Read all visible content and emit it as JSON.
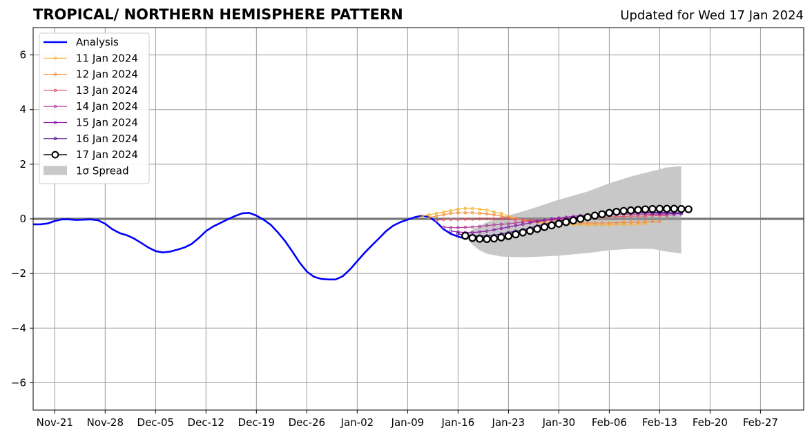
{
  "chart_data": {
    "type": "line",
    "title": "TROPICAL/ NORTHERN HEMISPHERE PATTERN",
    "subtitle": "Updated for Wed 17 Jan 2024",
    "xlim": [
      "2023-11-18",
      "2024-03-04"
    ],
    "ylim": [
      -7,
      7
    ],
    "y_ticks": [
      -6,
      -4,
      -2,
      0,
      2,
      4,
      6
    ],
    "y_tick_labels": [
      "−6",
      "−4",
      "−2",
      "0",
      "2",
      "4",
      "6"
    ],
    "x_ticks": [
      "2023-11-21",
      "2023-11-28",
      "2023-12-05",
      "2023-12-12",
      "2023-12-19",
      "2023-12-26",
      "2024-01-02",
      "2024-01-09",
      "2024-01-16",
      "2024-01-23",
      "2024-01-30",
      "2024-02-06",
      "2024-02-13",
      "2024-02-20",
      "2024-02-27"
    ],
    "x_tick_labels": [
      "Nov-21",
      "Nov-28",
      "Dec-05",
      "Dec-12",
      "Dec-19",
      "Dec-26",
      "Jan-02",
      "Jan-09",
      "Jan-16",
      "Jan-23",
      "Jan-30",
      "Feb-06",
      "Feb-13",
      "Feb-20",
      "Feb-27"
    ],
    "grid": true,
    "legend_position": "top-left",
    "zero_line": true,
    "analysis": {
      "name": "Analysis",
      "color": "#0000ff",
      "x": [
        "2023-11-18",
        "2023-11-19",
        "2023-11-20",
        "2023-11-21",
        "2023-11-22",
        "2023-11-23",
        "2023-11-24",
        "2023-11-25",
        "2023-11-26",
        "2023-11-27",
        "2023-11-28",
        "2023-11-29",
        "2023-11-30",
        "2023-12-01",
        "2023-12-02",
        "2023-12-03",
        "2023-12-04",
        "2023-12-05",
        "2023-12-06",
        "2023-12-07",
        "2023-12-08",
        "2023-12-09",
        "2023-12-10",
        "2023-12-11",
        "2023-12-12",
        "2023-12-13",
        "2023-12-14",
        "2023-12-15",
        "2023-12-16",
        "2023-12-17",
        "2023-12-18",
        "2023-12-19",
        "2023-12-20",
        "2023-12-21",
        "2023-12-22",
        "2023-12-23",
        "2023-12-24",
        "2023-12-25",
        "2023-12-26",
        "2023-12-27",
        "2023-12-28",
        "2023-12-29",
        "2023-12-30",
        "2023-12-31",
        "2024-01-01",
        "2024-01-02",
        "2024-01-03",
        "2024-01-04",
        "2024-01-05",
        "2024-01-06",
        "2024-01-07",
        "2024-01-08",
        "2024-01-09",
        "2024-01-10",
        "2024-01-11",
        "2024-01-12",
        "2024-01-13",
        "2024-01-14",
        "2024-01-15",
        "2024-01-16",
        "2024-01-17"
      ],
      "values": [
        -0.2,
        -0.2,
        -0.17,
        -0.08,
        -0.02,
        -0.02,
        -0.04,
        -0.03,
        -0.02,
        -0.05,
        -0.18,
        -0.38,
        -0.52,
        -0.6,
        -0.72,
        -0.88,
        -1.05,
        -1.18,
        -1.23,
        -1.2,
        -1.13,
        -1.05,
        -0.92,
        -0.7,
        -0.45,
        -0.28,
        -0.15,
        -0.02,
        0.1,
        0.2,
        0.22,
        0.12,
        -0.03,
        -0.22,
        -0.5,
        -0.82,
        -1.2,
        -1.6,
        -1.93,
        -2.12,
        -2.2,
        -2.22,
        -2.22,
        -2.1,
        -1.85,
        -1.55,
        -1.25,
        -0.98,
        -0.72,
        -0.45,
        -0.25,
        -0.12,
        -0.03,
        0.06,
        0.12,
        0.07,
        -0.12,
        -0.38,
        -0.55,
        -0.65,
        -0.72
      ]
    },
    "spread": {
      "name": "1σ Spread",
      "color": "#c8c8c8",
      "x": [
        "2024-01-17",
        "2024-01-18",
        "2024-01-19",
        "2024-01-20",
        "2024-01-22",
        "2024-01-24",
        "2024-01-26",
        "2024-01-30",
        "2024-02-03",
        "2024-02-06",
        "2024-02-09",
        "2024-02-12",
        "2024-02-14",
        "2024-02-16"
      ],
      "upper": [
        -0.55,
        -0.4,
        -0.25,
        -0.12,
        0.05,
        0.2,
        0.35,
        0.7,
        1.0,
        1.3,
        1.55,
        1.75,
        1.88,
        1.93
      ],
      "lower": [
        -0.65,
        -0.95,
        -1.15,
        -1.28,
        -1.38,
        -1.4,
        -1.4,
        -1.35,
        -1.25,
        -1.15,
        -1.1,
        -1.1,
        -1.2,
        -1.27
      ]
    },
    "forecasts": [
      {
        "name": "11 Jan 2024",
        "color": "#f7b434",
        "start": "2024-01-11",
        "values": [
          0.1,
          0.15,
          0.2,
          0.25,
          0.3,
          0.35,
          0.38,
          0.38,
          0.35,
          0.32,
          0.25,
          0.2,
          0.1,
          0.02,
          -0.05,
          -0.1,
          -0.13,
          -0.16,
          -0.18,
          -0.19,
          -0.2,
          -0.21,
          -0.22,
          -0.22,
          -0.22,
          -0.22,
          -0.22,
          -0.21,
          -0.2,
          -0.2,
          -0.19,
          -0.18
        ]
      },
      {
        "name": "12 Jan 2024",
        "color": "#f28c3a",
        "start": "2024-01-12",
        "values": [
          0.05,
          0.1,
          0.15,
          0.2,
          0.22,
          0.22,
          0.22,
          0.2,
          0.18,
          0.15,
          0.1,
          0.05,
          0.0,
          -0.05,
          -0.08,
          -0.1,
          -0.12,
          -0.14,
          -0.15,
          -0.16,
          -0.16,
          -0.16,
          -0.15,
          -0.15,
          -0.15,
          -0.15,
          -0.14,
          -0.13,
          -0.12,
          -0.12,
          -0.11,
          -0.1,
          -0.1
        ]
      },
      {
        "name": "13 Jan 2024",
        "color": "#e05a6a",
        "start": "2024-01-13",
        "values": [
          -0.05,
          -0.03,
          -0.02,
          -0.02,
          -0.01,
          -0.01,
          0.0,
          0.0,
          0.0,
          0.0,
          0.0,
          -0.02,
          -0.03,
          -0.05,
          -0.06,
          -0.06,
          -0.05,
          -0.04,
          -0.02,
          0.0,
          0.02,
          0.04,
          0.05,
          0.06,
          0.08,
          0.08,
          0.09,
          0.1,
          0.1,
          0.1,
          0.12,
          0.12,
          0.12
        ]
      },
      {
        "name": "14 Jan 2024",
        "color": "#b23a9a",
        "start": "2024-01-14",
        "values": [
          -0.3,
          -0.32,
          -0.32,
          -0.31,
          -0.3,
          -0.28,
          -0.25,
          -0.22,
          -0.2,
          -0.18,
          -0.15,
          -0.12,
          -0.1,
          -0.07,
          -0.05,
          -0.02,
          0.0,
          0.02,
          0.05,
          0.08,
          0.1,
          0.12,
          0.14,
          0.15,
          0.16,
          0.17,
          0.17,
          0.17,
          0.17,
          0.16,
          0.16,
          0.15,
          0.15
        ]
      },
      {
        "name": "15 Jan 2024",
        "color": "#8a1aa8",
        "start": "2024-01-15",
        "values": [
          -0.45,
          -0.48,
          -0.5,
          -0.5,
          -0.48,
          -0.45,
          -0.4,
          -0.35,
          -0.3,
          -0.25,
          -0.2,
          -0.15,
          -0.1,
          -0.05,
          0.0,
          0.03,
          0.06,
          0.09,
          0.12,
          0.14,
          0.16,
          0.18,
          0.2,
          0.21,
          0.22,
          0.22,
          0.22,
          0.22,
          0.21,
          0.2,
          0.2,
          0.19,
          0.18
        ]
      },
      {
        "name": "16 Jan 2024",
        "color": "#4b0a8a",
        "start": "2024-01-16",
        "values": [
          -0.55,
          -0.6,
          -0.62,
          -0.63,
          -0.62,
          -0.6,
          -0.55,
          -0.5,
          -0.45,
          -0.4,
          -0.33,
          -0.26,
          -0.2,
          -0.14,
          -0.08,
          -0.02,
          0.03,
          0.07,
          0.11,
          0.14,
          0.17,
          0.19,
          0.21,
          0.22,
          0.23,
          0.24,
          0.24,
          0.24,
          0.23,
          0.23,
          0.22,
          0.22
        ]
      },
      {
        "name": "17 Jan 2024",
        "color": "#000000",
        "start": "2024-01-17",
        "values": [
          -0.62,
          -0.7,
          -0.73,
          -0.74,
          -0.72,
          -0.68,
          -0.63,
          -0.57,
          -0.5,
          -0.44,
          -0.37,
          -0.3,
          -0.24,
          -0.18,
          -0.12,
          -0.06,
          0.0,
          0.06,
          0.12,
          0.17,
          0.22,
          0.26,
          0.29,
          0.31,
          0.33,
          0.35,
          0.36,
          0.37,
          0.37,
          0.37,
          0.36,
          0.35
        ]
      }
    ],
    "legend": [
      "Analysis",
      "11 Jan 2024",
      "12 Jan 2024",
      "13 Jan 2024",
      "14 Jan 2024",
      "15 Jan 2024",
      "16 Jan 2024",
      "17 Jan 2024",
      "1σ Spread"
    ]
  }
}
